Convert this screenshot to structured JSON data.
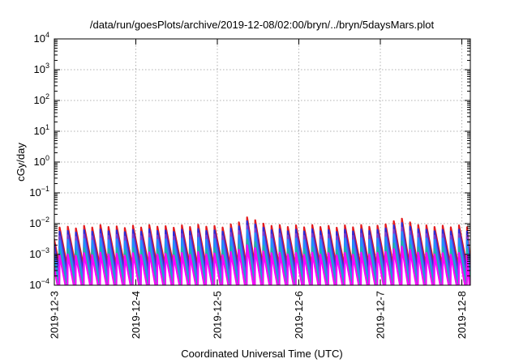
{
  "chart_data": {
    "type": "line",
    "title": "/data/run/goesPlots/archive/2019-12-08/02:00/bryn/../bryn/5daysMars.plot",
    "xlabel": "Coordinated Universal Time (UTC)",
    "ylabel": "cGy/day",
    "y_scale": "log",
    "ylim_exponents": [
      -4,
      4
    ],
    "y_tick_exponents": [
      -4,
      -3,
      -2,
      -1,
      0,
      1,
      2,
      3,
      4
    ],
    "xlim": [
      "2019-12-03",
      "2019-12-08 02:00"
    ],
    "x_ticks": [
      "2019-12-3",
      "2019-12-4",
      "2019-12-5",
      "2019-12-6",
      "2019-12-7",
      "2019-12-8"
    ],
    "grid": true,
    "sawtooth_period_hours": 2.4,
    "series": [
      {
        "color": "#e41a1c",
        "peaks": [
          0.0085,
          0.0075,
          0.008,
          0.007,
          0.0085,
          0.0075,
          0.009,
          0.0078,
          0.0082,
          0.0072,
          0.0086,
          0.0075,
          0.009,
          0.008,
          0.0083,
          0.0074,
          0.0088,
          0.0078,
          0.0092,
          0.008,
          0.0084,
          0.0075,
          0.0095,
          0.011,
          0.016,
          0.013,
          0.01,
          0.0085,
          0.009,
          0.0078,
          0.0088,
          0.0076,
          0.009,
          0.0078,
          0.0085,
          0.0074,
          0.0088,
          0.0076,
          0.009,
          0.0079,
          0.0086,
          0.0095,
          0.012,
          0.0145,
          0.011,
          0.009,
          0.0088,
          0.0078,
          0.0086,
          0.0076,
          0.0088,
          0.0077,
          0.0085,
          0.0076
        ],
        "troughs": [
          0.00045,
          0.0004
        ]
      },
      {
        "color": "#2b2bd8",
        "peaks": [
          0.0062,
          0.0055,
          0.0058,
          0.0052,
          0.0062,
          0.0055,
          0.0065,
          0.0057,
          0.006,
          0.0053,
          0.0063,
          0.0055,
          0.0066,
          0.0058,
          0.006,
          0.0054,
          0.0064,
          0.0057,
          0.0067,
          0.0058,
          0.0061,
          0.0055,
          0.007,
          0.0082,
          0.012,
          0.0095,
          0.0074,
          0.0062,
          0.0066,
          0.0057,
          0.0064,
          0.0056,
          0.0066,
          0.0057,
          0.0062,
          0.0054,
          0.0064,
          0.0056,
          0.0066,
          0.0058,
          0.0063,
          0.007,
          0.0088,
          0.0105,
          0.008,
          0.0066,
          0.0064,
          0.0057,
          0.0063,
          0.0056,
          0.0064,
          0.0056,
          0.0062,
          0.0055
        ],
        "troughs": [
          0.00028,
          0.00025
        ]
      },
      {
        "color": "#7b3fd4",
        "peaks": [
          0.0044,
          0.0039,
          0.0042,
          0.0037,
          0.0044,
          0.0039,
          0.0046,
          0.004,
          0.0043,
          0.0038,
          0.0045,
          0.0039,
          0.0047,
          0.0041,
          0.0043,
          0.0038,
          0.0046,
          0.004,
          0.0048,
          0.0041,
          0.0044,
          0.0039,
          0.005,
          0.0058,
          0.0085,
          0.0068,
          0.0053,
          0.0044,
          0.0047,
          0.0041,
          0.0046,
          0.004,
          0.0047,
          0.0041,
          0.0044,
          0.0039,
          0.0046,
          0.004,
          0.0047,
          0.0041,
          0.0045,
          0.005,
          0.0063,
          0.0075,
          0.0057,
          0.0047,
          0.0046,
          0.0041,
          0.0045,
          0.004,
          0.0046,
          0.004,
          0.0044,
          0.0039
        ],
        "troughs": [
          0.00017,
          0.00015
        ]
      },
      {
        "color": "#1e90ff",
        "peaks": [
          0.0032,
          0.0028,
          0.003,
          0.0027,
          0.0032,
          0.0028,
          0.0033,
          0.0029,
          0.0031,
          0.0027,
          0.0032,
          0.0028,
          0.0034,
          0.003,
          0.0031,
          0.0028,
          0.0033,
          0.0029,
          0.0035,
          0.003,
          0.0032,
          0.0028,
          0.0036,
          0.0042,
          0.0062,
          0.0049,
          0.0038,
          0.0032,
          0.0034,
          0.003,
          0.0033,
          0.0029,
          0.0034,
          0.003,
          0.0032,
          0.0028,
          0.0033,
          0.0029,
          0.0034,
          0.003,
          0.0033,
          0.0036,
          0.0045,
          0.0054,
          0.0041,
          0.0034,
          0.0033,
          0.003,
          0.0033,
          0.0029,
          0.0033,
          0.0029,
          0.0032,
          0.0028
        ],
        "troughs": [
          0.00011,
          0.0001
        ]
      },
      {
        "color": "#20b2aa",
        "peaks": [
          0.0016,
          0.0014,
          0.0015,
          0.0013,
          0.0016,
          0.0014,
          0.0017,
          0.0015,
          0.0016,
          0.0014,
          0.0016,
          0.0014,
          0.0017,
          0.0015,
          0.0016,
          0.0014,
          0.0017,
          0.0015,
          0.0018,
          0.0015,
          0.0016,
          0.0014,
          0.0018,
          0.0021,
          0.0031,
          0.0025,
          0.0019,
          0.0016,
          0.0017,
          0.0015,
          0.0017,
          0.0015,
          0.0017,
          0.0015,
          0.0016,
          0.0014,
          0.0017,
          0.0015,
          0.0017,
          0.0015,
          0.0017,
          0.0018,
          0.0023,
          0.0027,
          0.0021,
          0.0017,
          0.0017,
          0.0015,
          0.0017,
          0.0015,
          0.0017,
          0.0015,
          0.0016,
          0.0014
        ],
        "troughs": [
          8e-05,
          7e-05
        ]
      },
      {
        "color": "#ff00ff",
        "peaks": [
          0.0011,
          0.00095,
          0.001,
          0.0009,
          0.0011,
          0.00095,
          0.00115,
          0.001,
          0.00105,
          0.00092,
          0.0011,
          0.00096,
          0.00118,
          0.001,
          0.00105,
          0.00093,
          0.00112,
          0.00098,
          0.0012,
          0.001,
          0.00108,
          0.00094,
          0.0012,
          0.0014,
          0.002,
          0.0016,
          0.00125,
          0.0011,
          0.00115,
          0.001,
          0.00112,
          0.00098,
          0.00115,
          0.001,
          0.0011,
          0.00094,
          0.00112,
          0.00098,
          0.00115,
          0.001,
          0.00112,
          0.0012,
          0.0015,
          0.0018,
          0.0014,
          0.00115,
          0.00112,
          0.001,
          0.0011,
          0.00098,
          0.00112,
          0.00098,
          0.0011,
          0.00096
        ],
        "troughs": [
          5e-05,
          4.5e-05
        ]
      }
    ]
  }
}
